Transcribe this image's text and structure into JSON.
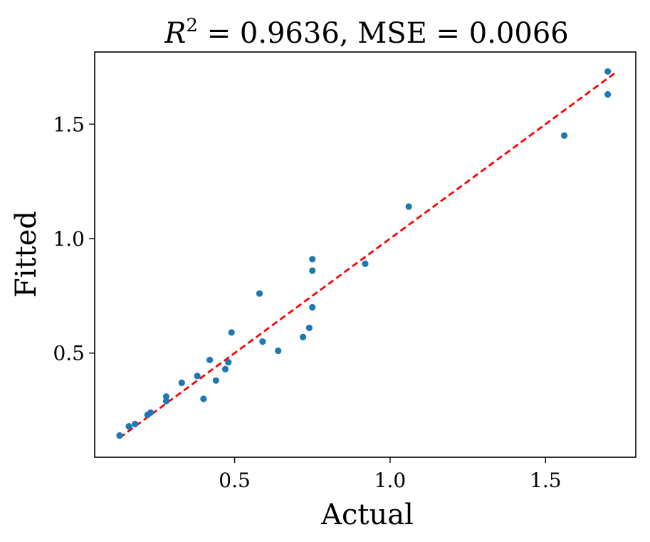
{
  "chart_data": {
    "type": "scatter",
    "title": {
      "r2_symbol": "R",
      "r2_exponent": "2",
      "r2_text": " = 0.9636, MSE = 0.0066"
    },
    "xlabel": "Actual",
    "ylabel": "Fitted",
    "xlim": [
      0.05,
      1.79
    ],
    "ylim": [
      0.045,
      1.815
    ],
    "xticks": [
      0.5,
      1.0,
      1.5
    ],
    "xtick_labels": [
      "0.5",
      "1.0",
      "1.5"
    ],
    "yticks": [
      0.5,
      1.0,
      1.5
    ],
    "ytick_labels": [
      "0.5",
      "1.0",
      "1.5"
    ],
    "grid": false,
    "point_color": "#1f77b4",
    "fit_line_color": "#ff0000",
    "series": [
      {
        "name": "points",
        "x": [
          0.13,
          0.16,
          0.18,
          0.22,
          0.23,
          0.28,
          0.28,
          0.33,
          0.38,
          0.4,
          0.42,
          0.44,
          0.47,
          0.48,
          0.49,
          0.58,
          0.59,
          0.64,
          0.72,
          0.74,
          0.75,
          0.75,
          0.75,
          0.92,
          1.06,
          1.56,
          1.7,
          1.7
        ],
        "y": [
          0.14,
          0.18,
          0.19,
          0.23,
          0.24,
          0.29,
          0.31,
          0.37,
          0.4,
          0.3,
          0.47,
          0.38,
          0.43,
          0.46,
          0.59,
          0.76,
          0.55,
          0.51,
          0.57,
          0.61,
          0.7,
          0.86,
          0.91,
          0.89,
          1.14,
          1.45,
          1.63,
          1.73
        ]
      }
    ],
    "fit_line": {
      "x": [
        0.13,
        1.73
      ],
      "y": [
        0.13,
        1.73
      ],
      "style": "dashed"
    }
  }
}
